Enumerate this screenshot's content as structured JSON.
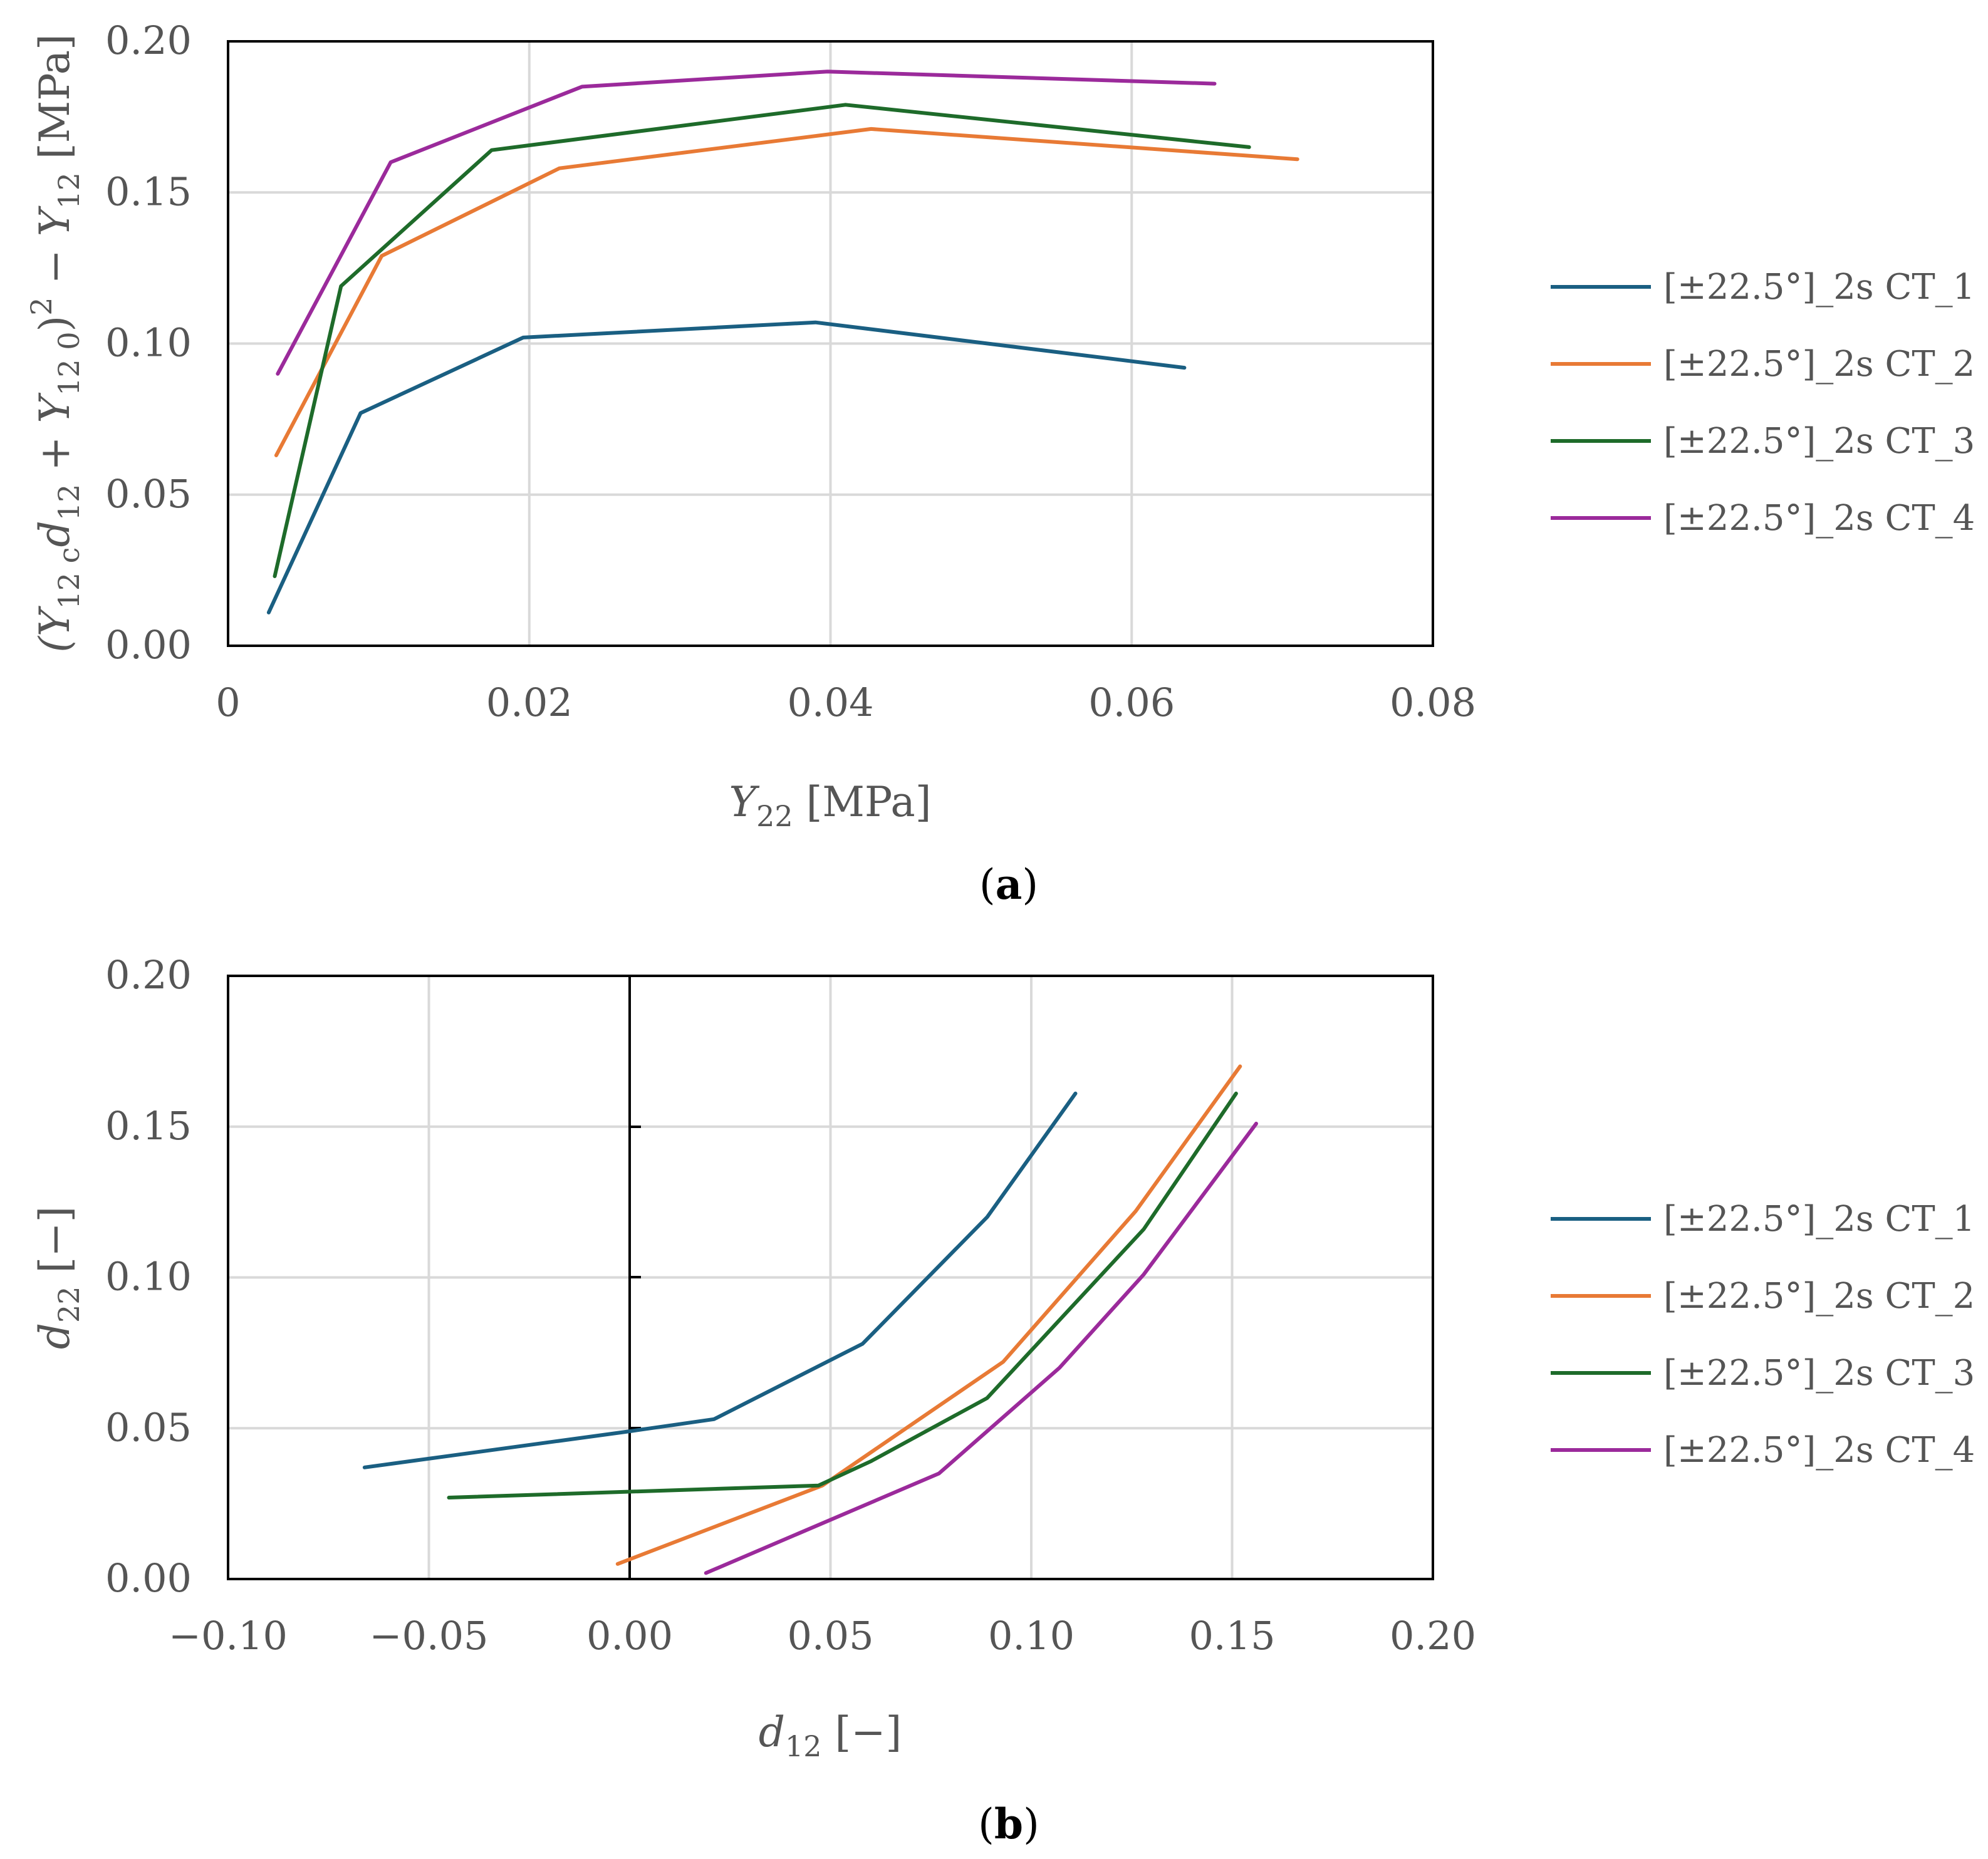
{
  "charts": [
    {
      "type": "line",
      "panel_label": "a",
      "xlim": [
        0,
        0.08
      ],
      "ylim": [
        0,
        0.2
      ],
      "xticks": [
        "0",
        "0.02",
        "0.04",
        "0.06",
        "0.08"
      ],
      "yticks": [
        "0.00",
        "0.05",
        "0.10",
        "0.15",
        "0.20"
      ],
      "xtick_values": [
        0,
        0.02,
        0.04,
        0.06,
        0.08
      ],
      "ytick_values": [
        0,
        0.05,
        0.1,
        0.15,
        0.2
      ],
      "xlabel": {
        "sym": "Y",
        "sub": "22",
        "unit": " [MPa]"
      },
      "ylabel": {
        "p1": "(Y",
        "s1": "12 c",
        "p2": "d",
        "s2": "12",
        "p3": " + Y",
        "s3": "12 0",
        "p4": ")",
        "sup": "2",
        "p5": " − Y",
        "s5": "12",
        "p6": " [MPa]"
      },
      "series": [
        {
          "name": "[±22.5°]_2s CT_1",
          "color": "#1a5f82",
          "x": [
            0.0027,
            0.0088,
            0.0196,
            0.039,
            0.0635
          ],
          "y": [
            0.011,
            0.077,
            0.102,
            0.107,
            0.092
          ]
        },
        {
          "name": "[±22.5°]_2s CT_2",
          "color": "#e87a35",
          "x": [
            0.0032,
            0.0102,
            0.022,
            0.0427,
            0.071
          ],
          "y": [
            0.063,
            0.129,
            0.158,
            0.171,
            0.161
          ]
        },
        {
          "name": "[±22.5°]_2s CT_3",
          "color": "#1e6b2a",
          "x": [
            0.0031,
            0.0075,
            0.0175,
            0.041,
            0.0678
          ],
          "y": [
            0.023,
            0.119,
            0.164,
            0.179,
            0.165
          ]
        },
        {
          "name": "[±22.5°]_2s CT_4",
          "color": "#9b2a9b",
          "x": [
            0.0033,
            0.0108,
            0.0235,
            0.0398,
            0.0655
          ],
          "y": [
            0.09,
            0.16,
            0.185,
            0.19,
            0.186
          ]
        }
      ]
    },
    {
      "type": "line",
      "panel_label": "b",
      "xlim": [
        -0.1,
        0.2
      ],
      "ylim": [
        0,
        0.2
      ],
      "xticks": [
        "−0.10",
        "−0.05",
        "0.00",
        "0.05",
        "0.10",
        "0.15",
        "0.20"
      ],
      "yticks": [
        "0.00",
        "0.05",
        "0.10",
        "0.15",
        "0.20"
      ],
      "xtick_values": [
        -0.1,
        -0.05,
        0,
        0.05,
        0.1,
        0.15,
        0.2
      ],
      "ytick_values": [
        0,
        0.05,
        0.1,
        0.15,
        0.2
      ],
      "xlabel": {
        "sym": "d",
        "sub": "12",
        "unit": " [−]"
      },
      "ylabel": {
        "sym": "d",
        "sub": "22",
        "unit": " [−]"
      },
      "series": [
        {
          "name": "[±22.5°]_2s CT_1",
          "color": "#1a5f82",
          "x": [
            -0.066,
            0.0,
            0.021,
            0.058,
            0.089,
            0.111
          ],
          "y": [
            0.037,
            0.049,
            0.053,
            0.078,
            0.12,
            0.161
          ]
        },
        {
          "name": "[±22.5°]_2s CT_2",
          "color": "#e87a35",
          "x": [
            -0.003,
            0.048,
            0.093,
            0.126,
            0.152
          ],
          "y": [
            0.005,
            0.031,
            0.072,
            0.122,
            0.17
          ]
        },
        {
          "name": "[±22.5°]_2s CT_3",
          "color": "#1e6b2a",
          "x": [
            -0.045,
            0.047,
            0.06,
            0.089,
            0.128,
            0.151
          ],
          "y": [
            0.027,
            0.031,
            0.039,
            0.06,
            0.116,
            0.161
          ]
        },
        {
          "name": "[±22.5°]_2s CT_4",
          "color": "#9b2a9b",
          "x": [
            0.019,
            0.077,
            0.107,
            0.128,
            0.156
          ],
          "y": [
            0.002,
            0.035,
            0.07,
            0.101,
            0.151
          ]
        }
      ]
    }
  ]
}
